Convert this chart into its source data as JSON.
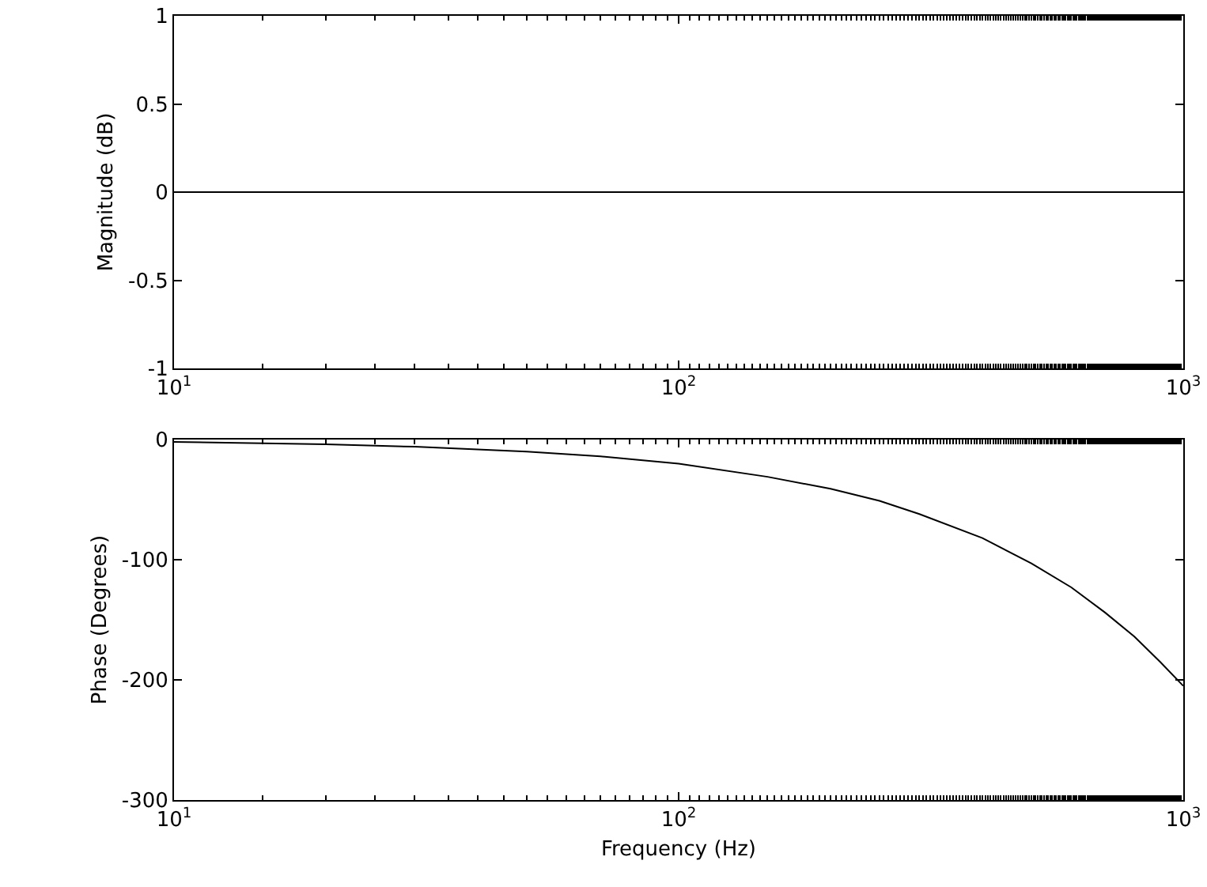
{
  "chart_data": [
    {
      "type": "line",
      "ylabel": "Magnitude (dB)",
      "x": [
        10,
        1000
      ],
      "values": [
        0,
        0
      ],
      "color": "#000000",
      "log": "x",
      "xlim": [
        10,
        1000
      ],
      "ylim": [
        -1,
        1
      ],
      "xticks": [
        {
          "value": 10,
          "label": "10$^{1}$"
        },
        {
          "value": 100,
          "label": "10$^{2}$"
        },
        {
          "value": 1000,
          "label": "10$^{3}$"
        }
      ],
      "yticks": [
        -1,
        -0.5,
        0,
        0.5,
        1
      ],
      "grid": false,
      "marker": "none",
      "line_style": "solid"
    },
    {
      "type": "line",
      "xlabel": "Frequency (Hz)",
      "ylabel": "Phase (Degrees)",
      "x": [
        10,
        20,
        30,
        50,
        70,
        100,
        150,
        200,
        250,
        300,
        400,
        500,
        600,
        700,
        800,
        900,
        1000
      ],
      "values": [
        -2,
        -4,
        -6,
        -10,
        -14,
        -20,
        -31,
        -41,
        -51,
        -62,
        -82,
        -103,
        -123,
        -144,
        -164,
        -185,
        -205
      ],
      "color": "#000000",
      "log": "x",
      "xlim": [
        10,
        1000
      ],
      "ylim": [
        -300,
        0
      ],
      "xticks": [
        {
          "value": 10,
          "label": "10$^{1}$"
        },
        {
          "value": 100,
          "label": "10$^{2}$"
        },
        {
          "value": 1000,
          "label": "10$^{3}$"
        }
      ],
      "yticks": [
        -300,
        -200,
        -100,
        0
      ],
      "grid": false,
      "marker": "none",
      "line_style": "solid"
    }
  ]
}
